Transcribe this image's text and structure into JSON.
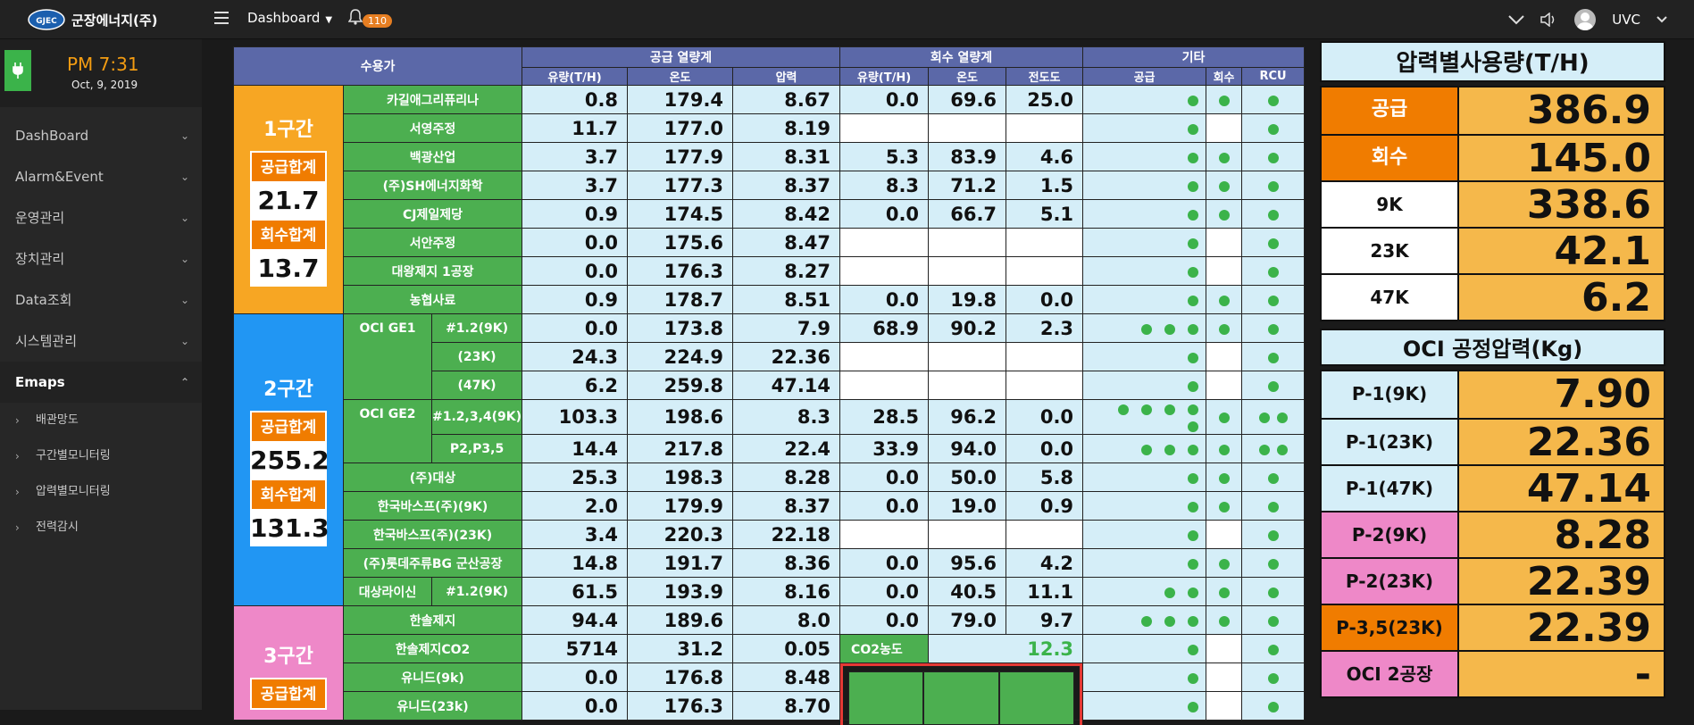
{
  "app": {
    "logo_text": "군장에너지(주)",
    "logo_mark": "GJEC"
  },
  "topbar": {
    "menu": "Dashboard",
    "bell_count": "110",
    "user": "UVC"
  },
  "clock": {
    "time": "PM 7:31",
    "date": "Oct, 9, 2019"
  },
  "sidebar": {
    "items": [
      {
        "label": "DashBoard"
      },
      {
        "label": "Alarm&Event"
      },
      {
        "label": "운영관리"
      },
      {
        "label": "장치관리"
      },
      {
        "label": "Data조회"
      },
      {
        "label": "시스템관리"
      },
      {
        "label": "Emaps"
      }
    ],
    "sub": [
      {
        "label": "배관망도"
      },
      {
        "label": "구간별모니터링"
      },
      {
        "label": "압력별모니터링"
      },
      {
        "label": "전력감시"
      }
    ]
  },
  "table": {
    "h_customer": "수용가",
    "h_supply": "공급 열량계",
    "h_return": "회수 열량계",
    "h_etc": "기타",
    "h_flow": "유량(T/H)",
    "h_temp": "온도",
    "h_press": "압력",
    "h_flow2": "유량(T/H)",
    "h_temp2": "온도",
    "h_cond": "전도도",
    "h_sup": "공급",
    "h_ret": "회수",
    "h_rcu": "RCU",
    "zone1": {
      "title": "1구간",
      "sup_lbl": "공급합계",
      "sup": "21.7",
      "ret_lbl": "회수합계",
      "ret": "13.7"
    },
    "zone2": {
      "title": "2구간",
      "sup_lbl": "공급합계",
      "sup": "255.2",
      "ret_lbl": "회수합계",
      "ret": "131.3"
    },
    "zone3": {
      "title": "3구간",
      "sup_lbl": "공급합계"
    },
    "r1": [
      "카길애그리퓨리나",
      "0.8",
      "179.4",
      "8.67",
      "0.0",
      "69.6",
      "25.0"
    ],
    "r2": [
      "서영주정",
      "11.7",
      "177.0",
      "8.19"
    ],
    "r3": [
      "백광산업",
      "3.7",
      "177.9",
      "8.31",
      "5.3",
      "83.9",
      "4.6"
    ],
    "r4": [
      "(주)SH에너지화학",
      "3.7",
      "177.3",
      "8.37",
      "8.3",
      "71.2",
      "1.5"
    ],
    "r5": [
      "CJ제일제당",
      "0.9",
      "174.5",
      "8.42",
      "0.0",
      "66.7",
      "5.1"
    ],
    "r6": [
      "서안주정",
      "0.0",
      "175.6",
      "8.47"
    ],
    "r7": [
      "대왕제지 1공장",
      "0.0",
      "176.3",
      "8.27"
    ],
    "r8": [
      "농협사료",
      "0.9",
      "178.7",
      "8.51",
      "0.0",
      "19.8",
      "0.0"
    ],
    "oci1": "OCI GE1",
    "r9": [
      "#1.2(9K)",
      "0.0",
      "173.8",
      "7.9",
      "68.9",
      "90.2",
      "2.3"
    ],
    "r10": [
      "(23K)",
      "24.3",
      "224.9",
      "22.36"
    ],
    "r11": [
      "(47K)",
      "6.2",
      "259.8",
      "47.14"
    ],
    "oci2": "OCI GE2",
    "r12": [
      "#1.2,3,4(9K)",
      "103.3",
      "198.6",
      "8.3",
      "28.5",
      "96.2",
      "0.0"
    ],
    "r13": [
      "P2,P3,5",
      "14.4",
      "217.8",
      "22.4",
      "33.9",
      "94.0",
      "0.0"
    ],
    "r14": [
      "(주)대상",
      "25.3",
      "198.3",
      "8.28",
      "0.0",
      "50.0",
      "5.8"
    ],
    "r15": [
      "한국바스프(주)(9K)",
      "2.0",
      "179.9",
      "8.37",
      "0.0",
      "19.0",
      "0.9"
    ],
    "r16": [
      "한국바스프(주)(23K)",
      "3.4",
      "220.3",
      "22.18"
    ],
    "r17": [
      "(주)롯데주류BG 군산공장",
      "14.8",
      "191.7",
      "8.36",
      "0.0",
      "95.6",
      "4.2"
    ],
    "r18": [
      "대상라이신",
      "#1.2(9K)",
      "61.5",
      "193.9",
      "8.16",
      "0.0",
      "40.5",
      "11.1"
    ],
    "r19": [
      "한솔제지",
      "94.4",
      "189.6",
      "8.0",
      "0.0",
      "79.0",
      "9.7"
    ],
    "r20": [
      "한솔제지CO2",
      "5714",
      "31.2",
      "0.05"
    ],
    "co2_label": "CO2농도",
    "co2_value": "12.3",
    "r21": [
      "유니드(9k)",
      "0.0",
      "176.8",
      "8.48"
    ],
    "r22": [
      "유니드(23k)",
      "0.0",
      "176.3",
      "8.70"
    ]
  },
  "pressure_panel": {
    "title": "압력별사용량(T/H)",
    "rows": [
      {
        "label": "공급",
        "value": "386.9"
      },
      {
        "label": "회수",
        "value": "145.0"
      },
      {
        "label": "9K",
        "value": "338.6"
      },
      {
        "label": "23K",
        "value": "42.1"
      },
      {
        "label": "47K",
        "value": "6.2"
      }
    ]
  },
  "oci_panel": {
    "title": "OCI 공정압력(Kg)",
    "rows": [
      {
        "label": "P-1(9K)",
        "value": "7.90"
      },
      {
        "label": "P-1(23K)",
        "value": "22.36"
      },
      {
        "label": "P-1(47K)",
        "value": "47.14"
      },
      {
        "label": "P-2(9K)",
        "value": "8.28"
      },
      {
        "label": "P-2(23K)",
        "value": "22.39"
      },
      {
        "label": "P-3,5(23K)",
        "value": "22.39"
      },
      {
        "label": "OCI 2공장",
        "value": "-"
      }
    ]
  },
  "colors": {
    "accent_orange": "#f07c00",
    "green": "#3bb34a",
    "zone1": "#f7a623",
    "zone2": "#2196f3",
    "zone3": "#ee88c8"
  }
}
